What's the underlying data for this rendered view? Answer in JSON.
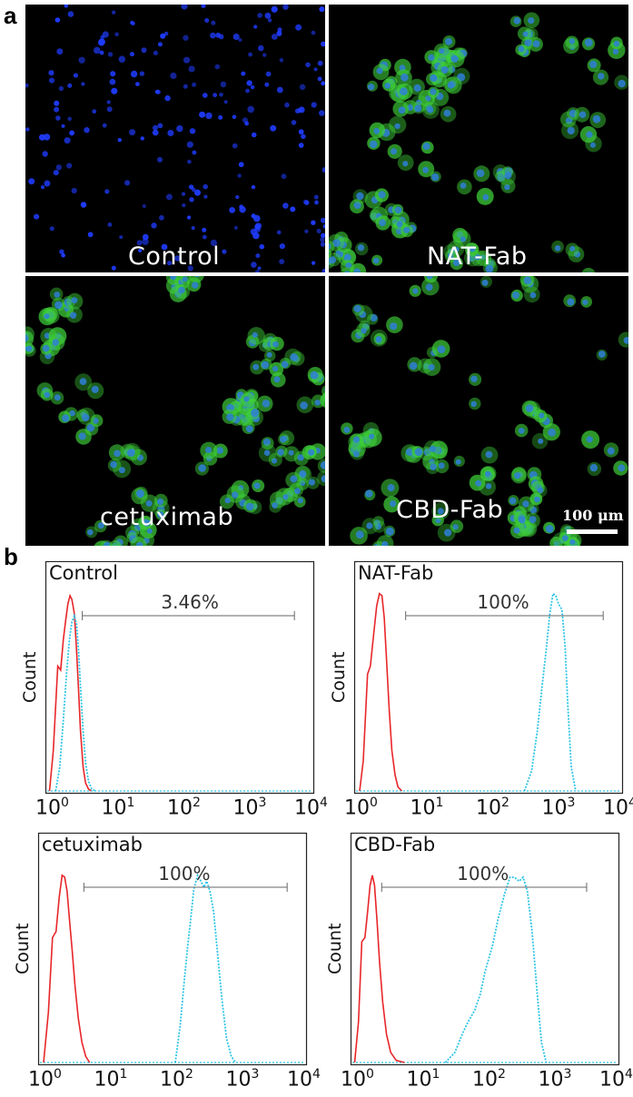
{
  "panel_a": {
    "letter": "a",
    "images": [
      {
        "label": "Control",
        "stain": "DAPI only"
      },
      {
        "label": "NAT-Fab",
        "stain": "DAPI + FITC"
      },
      {
        "label": "cetuximab",
        "stain": "DAPI + FITC"
      },
      {
        "label": "CBD-Fab",
        "stain": "DAPI + FITC"
      }
    ],
    "scale_bar": "100 μm",
    "colors": {
      "nuclei": "#1f3cff",
      "membrane": "#3ecf3a",
      "background": "#000000"
    }
  },
  "panel_b": {
    "letter": "b"
  },
  "chart_data": [
    {
      "type": "area",
      "title": "Control",
      "ylabel": "Count",
      "x_scale": "log",
      "xlim": [
        1,
        10000
      ],
      "x_ticks": [
        "10",
        "10",
        "10",
        "10",
        "10"
      ],
      "x_tick_exponents": [
        "0",
        "1",
        "2",
        "3",
        "4"
      ],
      "gate": {
        "label": "3.46%",
        "range": [
          3.3,
          5500
        ]
      },
      "series": [
        {
          "color": "#e8262a",
          "style": "solid",
          "x": [
            1.05,
            1.2,
            1.4,
            1.55,
            1.7,
            1.85,
            2.0,
            2.15,
            2.3,
            2.5,
            2.7,
            2.9,
            3.1,
            3.4,
            3.7,
            4.1,
            4.5
          ],
          "y": [
            0,
            0.2,
            0.62,
            0.6,
            0.75,
            0.85,
            0.93,
            0.97,
            0.95,
            0.88,
            0.7,
            0.5,
            0.3,
            0.12,
            0.04,
            0.01,
            0
          ]
        },
        {
          "color": "#2cc4e6",
          "style": "dotted",
          "x": [
            1.3,
            1.5,
            1.7,
            1.9,
            2.1,
            2.3,
            2.5,
            2.7,
            2.9,
            3.1,
            3.4,
            3.7,
            4.1,
            4.6,
            5.2
          ],
          "y": [
            0,
            0.12,
            0.35,
            0.58,
            0.75,
            0.84,
            0.87,
            0.83,
            0.7,
            0.52,
            0.3,
            0.14,
            0.05,
            0.01,
            0
          ]
        }
      ]
    },
    {
      "type": "area",
      "title": "NAT-Fab",
      "ylabel": "Count",
      "x_scale": "log",
      "xlim": [
        1,
        10000
      ],
      "x_ticks": [
        "10",
        "10",
        "10",
        "10",
        "10"
      ],
      "x_tick_exponents": [
        "0",
        "1",
        "2",
        "3",
        "4"
      ],
      "gate": {
        "label": "100%",
        "range": [
          5.5,
          5500
        ]
      },
      "series": [
        {
          "color": "#e8262a",
          "style": "solid",
          "x": [
            1.1,
            1.25,
            1.45,
            1.6,
            1.8,
            2.0,
            2.2,
            2.4,
            2.6,
            2.85,
            3.1,
            3.4,
            3.8,
            4.2,
            4.8
          ],
          "y": [
            0,
            0.15,
            0.58,
            0.62,
            0.78,
            0.92,
            0.98,
            0.97,
            0.86,
            0.62,
            0.4,
            0.2,
            0.08,
            0.02,
            0
          ]
        },
        {
          "color": "#2cc4e6",
          "style": "dotted",
          "x": [
            350,
            450,
            550,
            650,
            750,
            850,
            950,
            1050,
            1150,
            1300,
            1450,
            1600,
            1800,
            2100
          ],
          "y": [
            0,
            0.1,
            0.3,
            0.52,
            0.7,
            0.88,
            0.98,
            0.97,
            0.93,
            0.9,
            0.72,
            0.42,
            0.12,
            0
          ]
        }
      ]
    },
    {
      "type": "area",
      "title": "cetuximab",
      "ylabel": "Count",
      "x_scale": "log",
      "xlim": [
        1,
        10000
      ],
      "x_ticks": [
        "10",
        "10",
        "10",
        "10",
        "10"
      ],
      "x_tick_exponents": [
        "0",
        "1",
        "2",
        "3",
        "4"
      ],
      "gate": {
        "label": "100%",
        "range": [
          4.5,
          5500
        ]
      },
      "series": [
        {
          "color": "#e8262a",
          "style": "solid",
          "x": [
            1.1,
            1.3,
            1.5,
            1.7,
            1.9,
            2.1,
            2.3,
            2.5,
            2.7,
            3.0,
            3.3,
            3.7,
            4.2,
            4.8,
            5.5
          ],
          "y": [
            0,
            0.25,
            0.62,
            0.65,
            0.82,
            0.93,
            0.92,
            0.85,
            0.72,
            0.55,
            0.38,
            0.22,
            0.1,
            0.03,
            0
          ]
        },
        {
          "color": "#2cc4e6",
          "style": "dotted",
          "x": [
            110,
            130,
            150,
            170,
            190,
            210,
            240,
            270,
            300,
            330,
            370,
            420,
            480,
            560,
            660,
            780,
            900
          ],
          "y": [
            0,
            0.18,
            0.4,
            0.58,
            0.72,
            0.86,
            0.93,
            0.9,
            0.87,
            0.9,
            0.85,
            0.75,
            0.55,
            0.32,
            0.12,
            0.03,
            0
          ]
        }
      ]
    },
    {
      "type": "area",
      "title": "CBD-Fab",
      "ylabel": "Count",
      "x_scale": "log",
      "xlim": [
        1,
        10000
      ],
      "x_ticks": [
        "10",
        "10",
        "10",
        "10",
        "10"
      ],
      "x_tick_exponents": [
        "0",
        "1",
        "2",
        "3",
        "4"
      ],
      "gate": {
        "label": "100%",
        "range": [
          2.7,
          3500
        ]
      },
      "series": [
        {
          "color": "#e8262a",
          "style": "solid",
          "x": [
            1.05,
            1.2,
            1.35,
            1.5,
            1.65,
            1.8,
            1.95,
            2.1,
            2.3,
            2.5,
            2.8,
            3.2,
            3.7,
            4.5,
            6.0
          ],
          "y": [
            0,
            0.2,
            0.6,
            0.62,
            0.75,
            0.88,
            0.93,
            0.88,
            0.7,
            0.5,
            0.3,
            0.14,
            0.05,
            0.01,
            0
          ]
        },
        {
          "color": "#2cc4e6",
          "style": "dotted",
          "x": [
            25,
            35,
            45,
            55,
            70,
            85,
            100,
            130,
            160,
            200,
            240,
            280,
            330,
            380,
            440,
            520,
            620,
            720,
            850
          ],
          "y": [
            0,
            0.05,
            0.14,
            0.2,
            0.26,
            0.34,
            0.45,
            0.58,
            0.72,
            0.84,
            0.92,
            0.92,
            0.9,
            0.92,
            0.85,
            0.65,
            0.35,
            0.1,
            0
          ]
        }
      ]
    }
  ]
}
